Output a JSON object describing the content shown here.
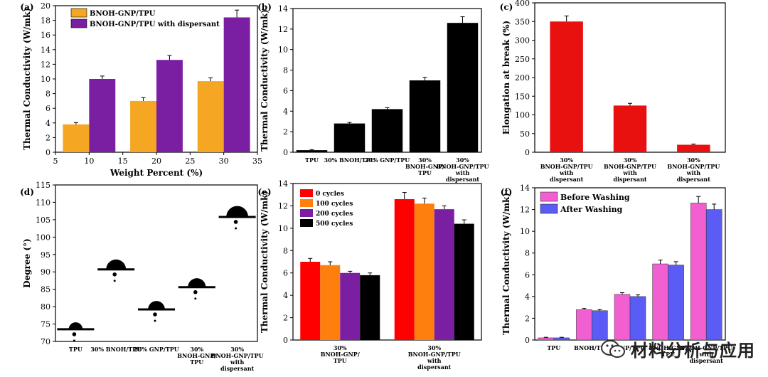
{
  "chart_data": [
    {
      "panel": "(a)",
      "type": "bar",
      "categories": [
        "10",
        "20",
        "30"
      ],
      "x": [
        10,
        20,
        30
      ],
      "series": [
        {
          "name": "BNOH-GNP/TPU",
          "color": "#f5a623",
          "values": [
            3.8,
            7.0,
            9.7
          ],
          "errors": [
            0.25,
            0.45,
            0.45
          ]
        },
        {
          "name": "BNOH-GNP/TPU with dispersant",
          "color": "#7b1fa2",
          "values": [
            10.0,
            12.6,
            18.4
          ],
          "errors": [
            0.4,
            0.6,
            1.0
          ]
        }
      ],
      "xlabel": "Weight Percent (%)",
      "ylabel": "Thermal Conductivity (W/mk)",
      "xlim": [
        5,
        35
      ],
      "ylim": [
        0,
        20
      ],
      "xticks": [
        "5",
        "10",
        "15",
        "20",
        "25",
        "30",
        "35"
      ],
      "yticks": [
        "0",
        "2",
        "4",
        "6",
        "8",
        "10",
        "12",
        "14",
        "16",
        "18",
        "20"
      ]
    },
    {
      "panel": "(b)",
      "type": "bar",
      "categories": [
        "TPU",
        "30% BNOH/TPU",
        "20% GNP/TPU",
        "30% BNOH-GNP/ TPU",
        "30% BNOH-GNP/TPU with dispersant"
      ],
      "values": [
        0.2,
        2.8,
        4.2,
        7.0,
        12.6
      ],
      "errors": [
        0.05,
        0.1,
        0.15,
        0.3,
        0.6
      ],
      "color": "#000000",
      "xlabel": "",
      "ylabel": "Thermal Conductivity (W/mk)",
      "ylim": [
        0,
        14
      ],
      "yticks": [
        "0",
        "2",
        "4",
        "6",
        "8",
        "10",
        "12",
        "14"
      ]
    },
    {
      "panel": "(c)",
      "type": "bar",
      "categories": [
        "30% BNOH-GNP/TPU with dispersant",
        "30% BNOH-GNP/TPU with dispersant",
        "30% BNOH-GNP/TPU with dispersant"
      ],
      "values": [
        350,
        125,
        20
      ],
      "errors": [
        15,
        6,
        2
      ],
      "color": "#e8110f",
      "ylabel": "Elongation at break (%)",
      "ylim": [
        0,
        400
      ],
      "yticks": [
        "0",
        "50",
        "100",
        "150",
        "200",
        "250",
        "300",
        "350",
        "400"
      ]
    },
    {
      "panel": "(d)",
      "type": "scatter",
      "categories": [
        "TPU",
        "30% BNOH/TPU",
        "20% GNP/TPU",
        "30% BNOH-GNP/ TPU",
        "30% BNOH-GNP/TPU with dispersant"
      ],
      "values": [
        73.5,
        90.7,
        79.2,
        85.6,
        105.8
      ],
      "ylabel": "Degree (°)",
      "ylim": [
        70,
        115
      ],
      "yticks": [
        "70",
        "75",
        "80",
        "85",
        "90",
        "95",
        "100",
        "105",
        "110",
        "115"
      ]
    },
    {
      "panel": "(e)",
      "type": "bar",
      "categories": [
        "30% BNOH-GNP/ TPU",
        "30% BNOH-GNP/TPU with dispersant"
      ],
      "series": [
        {
          "name": "0 cycles",
          "color": "#ff0000",
          "values": [
            7.0,
            12.6
          ],
          "errors": [
            0.3,
            0.6
          ]
        },
        {
          "name": "100 cycles",
          "color": "#ff7f0e",
          "values": [
            6.7,
            12.2
          ],
          "errors": [
            0.3,
            0.5
          ]
        },
        {
          "name": "200 cycles",
          "color": "#7b1fa2",
          "values": [
            6.0,
            11.7
          ],
          "errors": [
            0.15,
            0.3
          ]
        },
        {
          "name": "500 cycles",
          "color": "#000000",
          "values": [
            5.8,
            10.4
          ],
          "errors": [
            0.2,
            0.35
          ]
        }
      ],
      "ylabel": "Thermal Conductivity (W/mk)",
      "ylim": [
        0,
        14
      ],
      "yticks": [
        "0",
        "2",
        "4",
        "6",
        "8",
        "10",
        "12",
        "14"
      ]
    },
    {
      "panel": "(f)",
      "type": "bar",
      "categories": [
        "TPU",
        "BNOH/TPU",
        "GNP/TPU",
        "BNOH-GNP/ TPU",
        "BNOH-GNP/TPU with dispersant"
      ],
      "series": [
        {
          "name": "Before Washing",
          "color": "#f15fd0",
          "values": [
            0.2,
            2.8,
            4.2,
            7.0,
            12.6
          ],
          "errors": [
            0.05,
            0.1,
            0.15,
            0.35,
            0.6
          ]
        },
        {
          "name": "After Washing",
          "color": "#5b5bf5",
          "values": [
            0.2,
            2.7,
            4.0,
            6.9,
            12.0
          ],
          "errors": [
            0.05,
            0.1,
            0.15,
            0.3,
            0.5
          ]
        }
      ],
      "ylabel": "Thermal Conductivity (W/mk)",
      "ylim": [
        0,
        14
      ],
      "yticks": [
        "0",
        "2",
        "4",
        "6",
        "8",
        "10",
        "12",
        "14"
      ]
    }
  ],
  "watermark": {
    "text": "材料分析与应用",
    "icon": "wechat-icon"
  }
}
